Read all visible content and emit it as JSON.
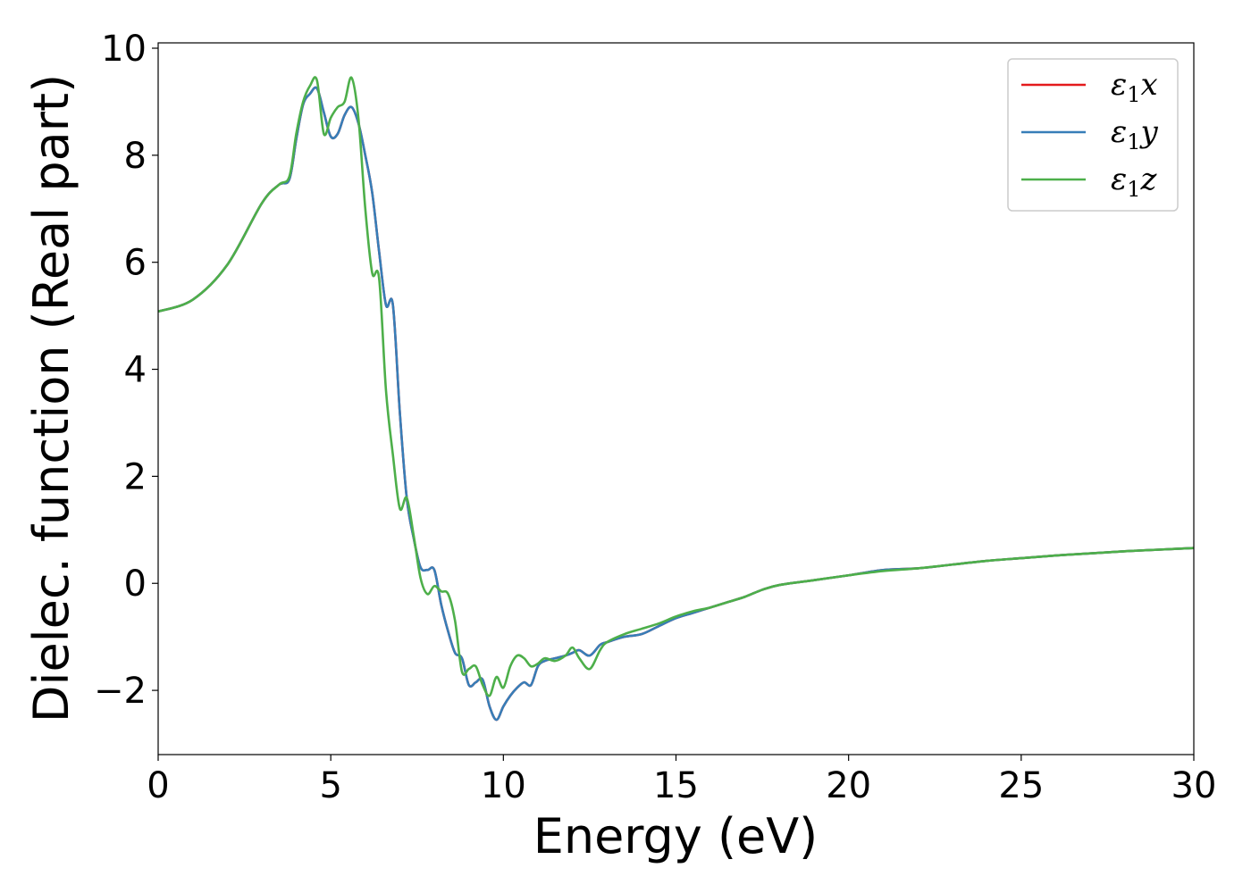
{
  "chart_data": {
    "type": "line",
    "title": "",
    "xlabel": "Energy (eV)",
    "ylabel": "Dielec. function (Real part)",
    "xlim": [
      0,
      30
    ],
    "ylim": [
      -3.2,
      10.1
    ],
    "xticks": [
      0,
      5,
      10,
      15,
      20,
      25,
      30
    ],
    "xtick_labels": [
      "0",
      "5",
      "10",
      "15",
      "20",
      "25",
      "30"
    ],
    "yticks": [
      -2,
      0,
      2,
      4,
      6,
      8,
      10
    ],
    "ytick_labels": [
      "−2",
      "0",
      "2",
      "4",
      "6",
      "8",
      "10"
    ],
    "grid": false,
    "legend_position": "top-right",
    "series": [
      {
        "name": "ε₁x",
        "legend_symbol": "ε",
        "legend_sub": "1",
        "legend_var": "x",
        "color": "#e41a1c",
        "x": [
          0,
          1,
          2,
          3,
          3.5,
          3.8,
          4.0,
          4.2,
          4.4,
          4.6,
          4.8,
          5.0,
          5.2,
          5.4,
          5.6,
          5.8,
          6.0,
          6.2,
          6.4,
          6.6,
          6.8,
          7.0,
          7.2,
          7.4,
          7.6,
          7.8,
          8.0,
          8.2,
          8.4,
          8.6,
          8.8,
          9.0,
          9.2,
          9.4,
          9.6,
          9.8,
          10.0,
          10.2,
          10.4,
          10.6,
          10.8,
          11.0,
          11.2,
          11.5,
          11.8,
          12.0,
          12.2,
          12.5,
          12.8,
          13.0,
          13.5,
          14.0,
          14.5,
          15.0,
          15.5,
          16.0,
          16.5,
          17.0,
          17.5,
          18.0,
          19.0,
          20.0,
          21.0,
          22.0,
          23.0,
          24.0,
          25.0,
          26.0,
          27.0,
          28.0,
          29.0,
          30.0
        ],
        "values": [
          5.08,
          5.3,
          5.95,
          7.1,
          7.45,
          7.55,
          8.3,
          8.95,
          9.15,
          9.25,
          8.8,
          8.35,
          8.4,
          8.75,
          8.9,
          8.6,
          8.0,
          7.3,
          6.2,
          5.2,
          5.2,
          3.2,
          1.6,
          0.85,
          0.3,
          0.25,
          0.25,
          -0.4,
          -0.9,
          -1.3,
          -1.4,
          -1.9,
          -1.85,
          -1.8,
          -2.3,
          -2.55,
          -2.3,
          -2.1,
          -1.95,
          -1.85,
          -1.9,
          -1.55,
          -1.45,
          -1.4,
          -1.35,
          -1.3,
          -1.25,
          -1.35,
          -1.15,
          -1.1,
          -1.0,
          -0.95,
          -0.8,
          -0.65,
          -0.55,
          -0.45,
          -0.35,
          -0.25,
          -0.12,
          -0.03,
          0.06,
          0.15,
          0.25,
          0.28,
          0.35,
          0.42,
          0.47,
          0.52,
          0.56,
          0.6,
          0.63,
          0.66
        ]
      },
      {
        "name": "ε₁y",
        "legend_symbol": "ε",
        "legend_sub": "1",
        "legend_var": "y",
        "color": "#377eb8",
        "x": [
          0,
          1,
          2,
          3,
          3.5,
          3.8,
          4.0,
          4.2,
          4.4,
          4.6,
          4.8,
          5.0,
          5.2,
          5.4,
          5.6,
          5.8,
          6.0,
          6.2,
          6.4,
          6.6,
          6.8,
          7.0,
          7.2,
          7.4,
          7.6,
          7.8,
          8.0,
          8.2,
          8.4,
          8.6,
          8.8,
          9.0,
          9.2,
          9.4,
          9.6,
          9.8,
          10.0,
          10.2,
          10.4,
          10.6,
          10.8,
          11.0,
          11.2,
          11.5,
          11.8,
          12.0,
          12.2,
          12.5,
          12.8,
          13.0,
          13.5,
          14.0,
          14.5,
          15.0,
          15.5,
          16.0,
          16.5,
          17.0,
          17.5,
          18.0,
          19.0,
          20.0,
          21.0,
          22.0,
          23.0,
          24.0,
          25.0,
          26.0,
          27.0,
          28.0,
          29.0,
          30.0
        ],
        "values": [
          5.08,
          5.3,
          5.95,
          7.1,
          7.45,
          7.55,
          8.3,
          8.95,
          9.15,
          9.25,
          8.8,
          8.35,
          8.4,
          8.75,
          8.9,
          8.6,
          8.0,
          7.3,
          6.2,
          5.2,
          5.2,
          3.2,
          1.6,
          0.85,
          0.3,
          0.25,
          0.25,
          -0.4,
          -0.9,
          -1.3,
          -1.4,
          -1.9,
          -1.85,
          -1.8,
          -2.3,
          -2.55,
          -2.3,
          -2.1,
          -1.95,
          -1.85,
          -1.9,
          -1.55,
          -1.45,
          -1.4,
          -1.35,
          -1.3,
          -1.25,
          -1.35,
          -1.15,
          -1.1,
          -1.0,
          -0.95,
          -0.8,
          -0.65,
          -0.55,
          -0.45,
          -0.35,
          -0.25,
          -0.12,
          -0.03,
          0.06,
          0.15,
          0.25,
          0.28,
          0.35,
          0.42,
          0.47,
          0.52,
          0.56,
          0.6,
          0.63,
          0.66
        ]
      },
      {
        "name": "ε₁z",
        "legend_symbol": "ε",
        "legend_sub": "1",
        "legend_var": "z",
        "color": "#4daf4a",
        "x": [
          0,
          1,
          2,
          3,
          3.5,
          3.8,
          4.0,
          4.2,
          4.4,
          4.6,
          4.8,
          5.0,
          5.2,
          5.4,
          5.6,
          5.8,
          6.0,
          6.2,
          6.4,
          6.6,
          6.8,
          7.0,
          7.2,
          7.4,
          7.6,
          7.8,
          8.0,
          8.2,
          8.4,
          8.6,
          8.8,
          9.0,
          9.2,
          9.4,
          9.6,
          9.8,
          10.0,
          10.2,
          10.4,
          10.6,
          10.8,
          11.0,
          11.2,
          11.5,
          11.8,
          12.0,
          12.2,
          12.5,
          12.8,
          13.0,
          13.5,
          14.0,
          14.5,
          15.0,
          15.5,
          16.0,
          16.5,
          17.0,
          17.5,
          18.0,
          19.0,
          20.0,
          21.0,
          22.0,
          23.0,
          24.0,
          25.0,
          26.0,
          27.0,
          28.0,
          29.0,
          30.0
        ],
        "values": [
          5.08,
          5.3,
          5.95,
          7.1,
          7.45,
          7.6,
          8.4,
          9.0,
          9.3,
          9.4,
          8.4,
          8.7,
          8.9,
          9.0,
          9.45,
          8.7,
          7.0,
          5.8,
          5.7,
          3.6,
          2.4,
          1.4,
          1.6,
          0.9,
          0.1,
          -0.2,
          -0.05,
          -0.15,
          -0.2,
          -0.7,
          -1.65,
          -1.6,
          -1.55,
          -1.9,
          -2.1,
          -1.75,
          -1.95,
          -1.55,
          -1.35,
          -1.4,
          -1.55,
          -1.5,
          -1.4,
          -1.45,
          -1.35,
          -1.2,
          -1.4,
          -1.6,
          -1.25,
          -1.1,
          -0.95,
          -0.85,
          -0.75,
          -0.62,
          -0.52,
          -0.45,
          -0.35,
          -0.25,
          -0.12,
          -0.03,
          0.06,
          0.15,
          0.23,
          0.28,
          0.35,
          0.42,
          0.47,
          0.52,
          0.56,
          0.6,
          0.63,
          0.66
        ]
      }
    ]
  }
}
